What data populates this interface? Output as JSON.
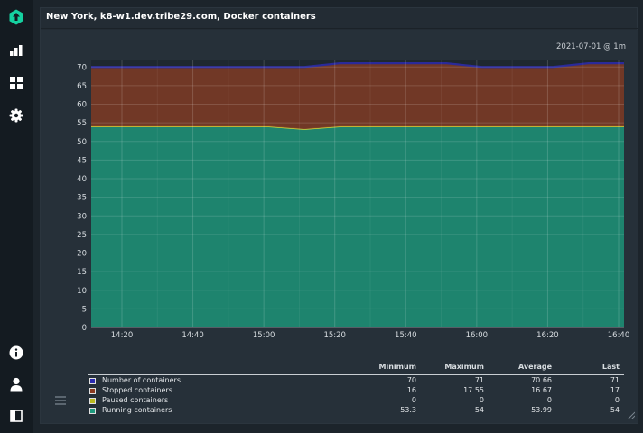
{
  "panel": {
    "title": "New York, k8-w1.dev.tribe29.com, Docker containers",
    "timestamp": "2021-07-01 @ 1m"
  },
  "sidebar": {
    "top_items": [
      {
        "icon": "logo-icon"
      },
      {
        "icon": "bar-chart-icon"
      },
      {
        "icon": "dashboard-icon"
      },
      {
        "icon": "gear-icon"
      }
    ],
    "bottom_items": [
      {
        "icon": "info-icon"
      },
      {
        "icon": "user-icon"
      },
      {
        "icon": "sidebar-toggle-icon"
      }
    ]
  },
  "chart_data": {
    "type": "area",
    "stacked": true,
    "x_ticks": [
      "14:20",
      "14:40",
      "15:00",
      "15:20",
      "15:40",
      "16:00",
      "16:20",
      "16:40"
    ],
    "y_ticks": [
      0,
      5,
      10,
      15,
      20,
      25,
      30,
      35,
      40,
      45,
      50,
      55,
      60,
      65,
      70
    ],
    "ylim": [
      0,
      72
    ],
    "grid": true,
    "series": [
      {
        "name": "Running containers",
        "color": "#1e8e76",
        "values": [
          54,
          54,
          54,
          54,
          54,
          54,
          53.3,
          54,
          54,
          54,
          54,
          54,
          54,
          54,
          54,
          54
        ]
      },
      {
        "name": "Paused containers",
        "color": "#c8c832",
        "values": [
          0,
          0,
          0,
          0,
          0,
          0,
          0,
          0,
          0,
          0,
          0,
          0,
          0,
          0,
          0,
          0
        ]
      },
      {
        "name": "Stopped containers",
        "color": "#7a3a26",
        "values": [
          16,
          16,
          16,
          16,
          16,
          16,
          16.7,
          17,
          17,
          17,
          17,
          16,
          16,
          16,
          17,
          17
        ]
      }
    ],
    "total_line": {
      "name": "Number of containers",
      "color": "#2a2a9a",
      "values": [
        70,
        70,
        70,
        70,
        70,
        70,
        70,
        71,
        71,
        71,
        71,
        70,
        70,
        70,
        71,
        71
      ]
    },
    "legend": {
      "headers": [
        "Minimum",
        "Maximum",
        "Average",
        "Last"
      ],
      "rows": [
        {
          "label": "Number of containers",
          "color": "#2b2bb0",
          "min": "70",
          "max": "71",
          "avg": "70.66",
          "last": "71"
        },
        {
          "label": "Stopped containers",
          "color": "#8a3a20",
          "min": "16",
          "max": "17.55",
          "avg": "16.67",
          "last": "17"
        },
        {
          "label": "Paused containers",
          "color": "#b9b91e",
          "min": "0",
          "max": "0",
          "avg": "0",
          "last": "0"
        },
        {
          "label": "Running containers",
          "color": "#1e9a7e",
          "min": "53.3",
          "max": "54",
          "avg": "53.99",
          "last": "54"
        }
      ]
    }
  }
}
